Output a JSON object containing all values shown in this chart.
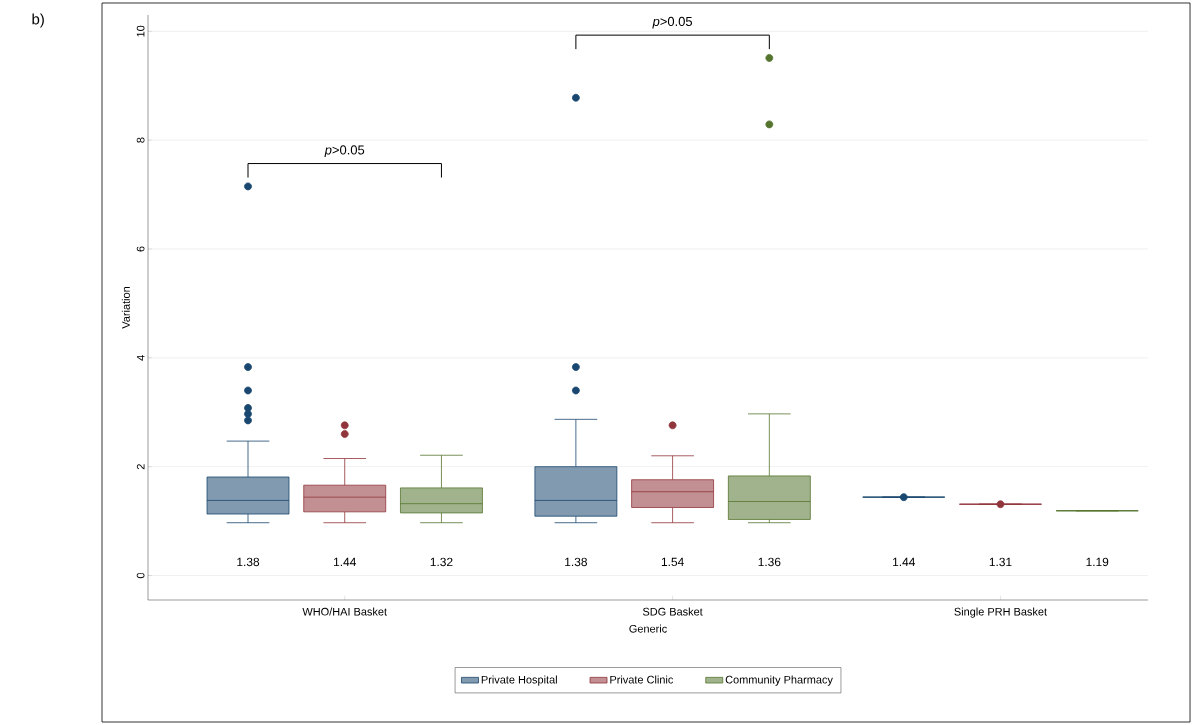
{
  "chart_data": {
    "type": "box",
    "xlabel": "Generic",
    "ylabel": "Variation",
    "categories": [
      "WHO/HAI Basket",
      "SDG Basket",
      "Single PRH Basket"
    ],
    "ylim": [
      -0.45,
      10.3
    ],
    "yticks": [
      0,
      2,
      4,
      6,
      8,
      10
    ],
    "grid": "y",
    "legend": "bottom",
    "marker": "circle",
    "series": [
      {
        "name": "Private Hospital",
        "color": "#1a476f",
        "value_labels": [
          "1.38",
          "1.38",
          "1.44"
        ],
        "boxes": [
          {
            "low": 0.97,
            "q1": 1.13,
            "median": 1.38,
            "q3": 1.81,
            "high": 2.47,
            "outliers": [
              7.15,
              3.83,
              3.4,
              3.08,
              2.97,
              2.85
            ]
          },
          {
            "low": 0.97,
            "q1": 1.09,
            "median": 1.38,
            "q3": 2.0,
            "high": 2.87,
            "outliers": [
              8.78,
              3.83,
              3.4
            ]
          },
          {
            "low": 1.44,
            "q1": 1.44,
            "median": 1.44,
            "q3": 1.44,
            "high": 1.44,
            "outliers": [
              1.44
            ]
          }
        ]
      },
      {
        "name": "Private Clinic",
        "color": "#90353b",
        "value_labels": [
          "1.44",
          "1.54",
          "1.31"
        ],
        "boxes": [
          {
            "low": 0.97,
            "q1": 1.17,
            "median": 1.44,
            "q3": 1.66,
            "high": 2.15,
            "outliers": [
              2.76,
              2.6
            ]
          },
          {
            "low": 0.97,
            "q1": 1.25,
            "median": 1.54,
            "q3": 1.76,
            "high": 2.2,
            "outliers": [
              2.76
            ]
          },
          {
            "low": 1.31,
            "q1": 1.31,
            "median": 1.31,
            "q3": 1.31,
            "high": 1.31,
            "outliers": [
              1.31
            ]
          }
        ]
      },
      {
        "name": "Community Pharmacy",
        "color": "#55752f",
        "value_labels": [
          "1.32",
          "1.36",
          "1.19"
        ],
        "boxes": [
          {
            "low": 0.97,
            "q1": 1.15,
            "median": 1.32,
            "q3": 1.61,
            "high": 2.21
          },
          {
            "low": 0.97,
            "q1": 1.03,
            "median": 1.36,
            "q3": 1.83,
            "high": 2.97,
            "outliers": [
              9.51,
              8.29
            ]
          },
          {
            "low": 1.19,
            "q1": 1.19,
            "median": 1.19,
            "q3": 1.19,
            "high": 1.19
          }
        ]
      }
    ],
    "annotations": [
      "b)",
      "*p*>0.05",
      "*p*>0.05"
    ]
  }
}
